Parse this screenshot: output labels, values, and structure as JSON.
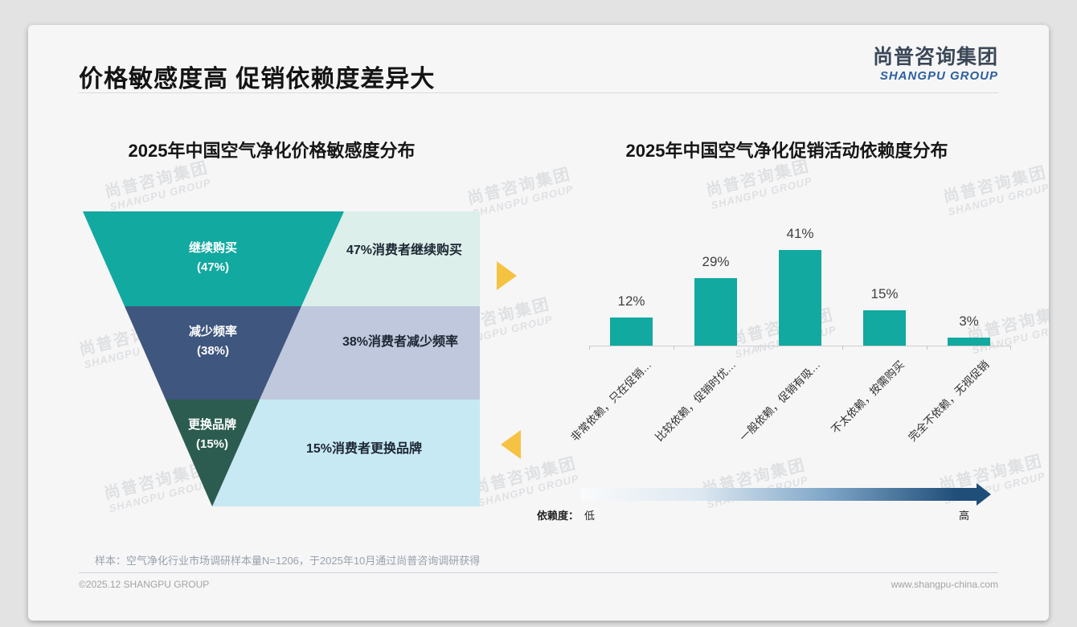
{
  "header": {
    "title": "价格敏感度高 促销依赖度差异大",
    "logo_cn": "尚普咨询集团",
    "logo_en": "SHANGPU GROUP"
  },
  "watermark": {
    "line1": "尚普咨询集团",
    "line2": "SHANGPU GROUP"
  },
  "chart_data": [
    {
      "type": "funnel",
      "title": "2025年中国空气净化价格敏感度分布",
      "categories": [
        "继续购买",
        "减少频率",
        "更换品牌"
      ],
      "values": [
        47,
        38,
        15
      ],
      "pct_labels": [
        "(47%)",
        "(38%)",
        "(15%)"
      ],
      "side_texts": [
        "47%消费者继续购买",
        "38%消费者减少频率",
        "15%消费者更换品牌"
      ],
      "segment_colors": [
        "#12a9a0",
        "#3f567e",
        "#2b5c4f"
      ],
      "side_colors": [
        "#dcefea",
        "#bfc8dc",
        "#c7e9f3"
      ],
      "accent_arrow_color": "#f5c242"
    },
    {
      "type": "bar",
      "title": "2025年中国空气净化促销活动依赖度分布",
      "categories": [
        "非常依赖，只在促销…",
        "比较依赖，促销时优…",
        "一般依赖，促销有吸…",
        "不太依赖，按需购买",
        "完全不依赖，无视促销"
      ],
      "values": [
        12,
        29,
        41,
        15,
        3
      ],
      "value_labels": [
        "12%",
        "29%",
        "41%",
        "15%",
        "3%"
      ],
      "bar_color": "#12a9a0",
      "ylim": [
        0,
        45
      ],
      "grid": false,
      "legend": {
        "label": "依赖度：",
        "low": "低",
        "high": "高",
        "gradient_end_color": "#1f4e79"
      }
    }
  ],
  "footer": {
    "sample_note": "样本：空气净化行业市场调研样本量N=1206，于2025年10月通过尚普咨询调研获得",
    "copyright": "©2025.12 SHANGPU GROUP",
    "website": "www.shangpu-china.com"
  }
}
